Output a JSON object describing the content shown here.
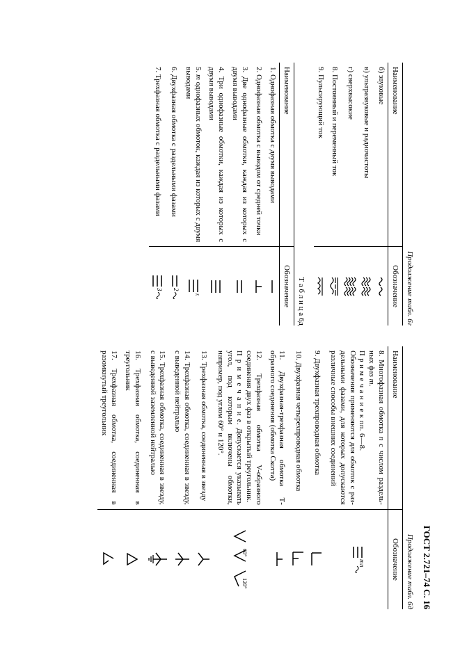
{
  "header": "ГОСТ 2.721–74 С. 16",
  "left_top_caption": "Продолжение табл. 6г",
  "left_top_col1": "Наименование",
  "left_top_col2": "Обозначение",
  "left_rows_top": [
    {
      "name": "б) звуковые"
    },
    {
      "name": "в) ультразвуковые и радиочас­тоты"
    },
    {
      "name": "г) сверхвысокие"
    },
    {
      "name": "8. Постоянный и переменный ток"
    },
    {
      "name": "9. Пульсирующий ток"
    }
  ],
  "left_mid_caption": "Т а б л и ц а 6д",
  "left_mid_col1": "Наименование",
  "left_mid_col2": "Обозначение",
  "left_rows_bot": [
    {
      "name": "1. Однофазная обмотка с двумя выводами"
    },
    {
      "name": "2. Однофазная обмотка с выводом от средней точки"
    },
    {
      "name": "3. Две однофазные обмотки, каждая из которых с двумя выводами"
    },
    {
      "name": "4. Три однофазные обмотки, каждая из которых с двумя выводами"
    },
    {
      "name": "5. <i>m</i> однофазных обмоток, каждая из которых с двумя выводами"
    },
    {
      "name": "6. Двухфазная обмотка с раздельными фазами"
    },
    {
      "name": "7. Трехфазная обмотка с раздельными фазами"
    }
  ],
  "right_caption": "Продолжение табл. 6д",
  "right_col1": "Наименование",
  "right_col2": "Обозначение",
  "right_rows": [
    {
      "name": "8. Многофазная обмотка <i>n</i> с числом раздель­ных фаз <i>m</i>.<br><span class='note spaced'>П р и м е ч а н и е к пп. 6—8.</span><br>Обозначения применяются для обмоток с раз­дельными фазами, для которых допускаются раз­лич­ные способы внешних соединений"
    },
    {
      "name": "9. Двухфазная трехпроводная обмотка"
    },
    {
      "name": "10. Двухфазная четырехпровод­ная обмотка"
    },
    {
      "name": "11. Двухфазная-трехфазная обмотка Т-образного соединения (обмотка Скотта)"
    },
    {
      "name": "12. Трехфазная обмотка V-об­разного соединения двух фаз в открытый тре­угольник.<br><span class='note spaced'>П р и м е ч а н и е.</span> Допускается указывать угол, под которым включены обмотки, например, под углом 60° и 120°."
    },
    {
      "name": "13. Трехфазная обмотка, соеди­ненная в звезду"
    },
    {
      "name": "14. Трехфазная обмотка, соеди­ненная в звезду, с выведенной нейтралью"
    },
    {
      "name": "15. Трехфазная обмотка, соеди­ненная в звезду, с выведенной заземленной нейтралью"
    },
    {
      "name": "16. Трехфазная обмотка, соеди­ненная в треугольник"
    },
    {
      "name": "17. Трехфазная обмотка, соеди­ненная в разомкнутый треугольник"
    }
  ]
}
